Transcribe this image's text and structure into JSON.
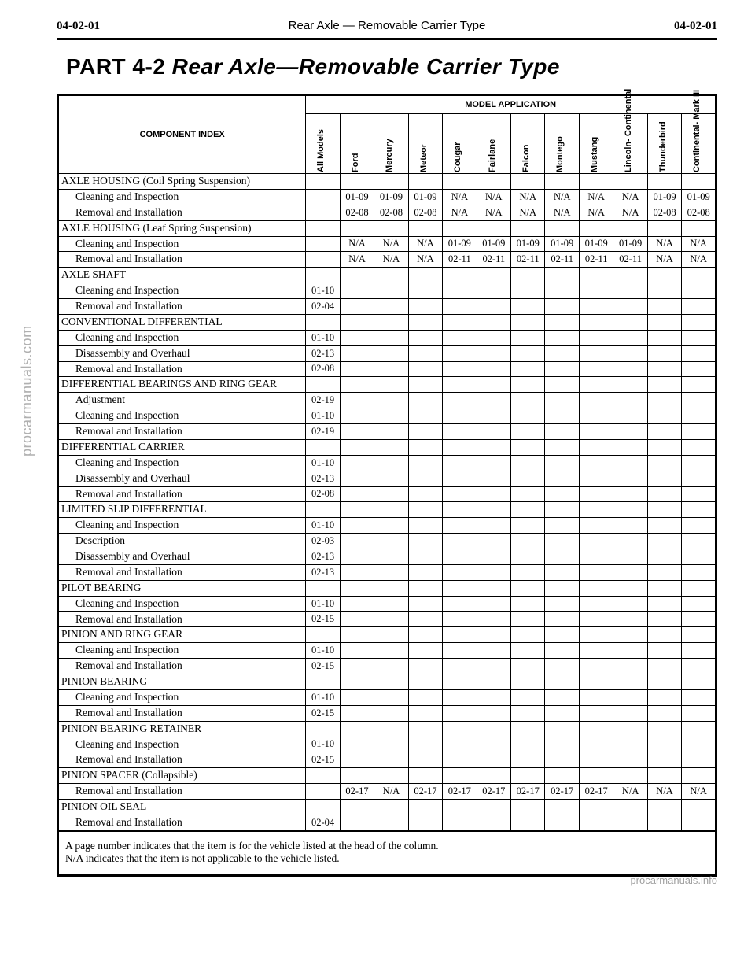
{
  "header": {
    "left": "04-02-01",
    "center": "Rear Axle — Removable Carrier Type",
    "right": "04-02-01"
  },
  "title": {
    "part": "PART 4-2",
    "rest": "Rear Axle—Removable Carrier Type"
  },
  "table": {
    "component_header": "COMPONENT INDEX",
    "model_app_header": "MODEL APPLICATION",
    "columns": [
      "All Models",
      "Ford",
      "Mercury",
      "Meteor",
      "Cougar",
      "Fairlane",
      "Falcon",
      "Montego",
      "Mustang",
      "Lincoln-\nContinental",
      "Thunderbird",
      "Continental-\nMark III"
    ],
    "rows": [
      {
        "label": "AXLE HOUSING (Coil Spring Suspension)",
        "section": true,
        "vals": [
          "",
          "",
          "",
          "",
          "",
          "",
          "",
          "",
          "",
          "",
          "",
          ""
        ]
      },
      {
        "label": "Cleaning and Inspection",
        "indent": true,
        "vals": [
          "",
          "01-09",
          "01-09",
          "01-09",
          "N/A",
          "N/A",
          "N/A",
          "N/A",
          "N/A",
          "N/A",
          "01-09",
          "01-09"
        ]
      },
      {
        "label": "Removal and Installation",
        "indent": true,
        "vals": [
          "",
          "02-08",
          "02-08",
          "02-08",
          "N/A",
          "N/A",
          "N/A",
          "N/A",
          "N/A",
          "N/A",
          "02-08",
          "02-08"
        ]
      },
      {
        "label": "AXLE HOUSING (Leaf Spring Suspension)",
        "section": true,
        "vals": [
          "",
          "",
          "",
          "",
          "",
          "",
          "",
          "",
          "",
          "",
          "",
          ""
        ]
      },
      {
        "label": "Cleaning and Inspection",
        "indent": true,
        "vals": [
          "",
          "N/A",
          "N/A",
          "N/A",
          "01-09",
          "01-09",
          "01-09",
          "01-09",
          "01-09",
          "01-09",
          "N/A",
          "N/A"
        ]
      },
      {
        "label": "Removal and Installation",
        "indent": true,
        "vals": [
          "",
          "N/A",
          "N/A",
          "N/A",
          "02-11",
          "02-11",
          "02-11",
          "02-11",
          "02-11",
          "02-11",
          "N/A",
          "N/A"
        ]
      },
      {
        "label": "AXLE SHAFT",
        "section": true,
        "vals": [
          "",
          "",
          "",
          "",
          "",
          "",
          "",
          "",
          "",
          "",
          "",
          ""
        ]
      },
      {
        "label": "Cleaning and Inspection",
        "indent": true,
        "vals": [
          "01-10",
          "",
          "",
          "",
          "",
          "",
          "",
          "",
          "",
          "",
          "",
          ""
        ]
      },
      {
        "label": "Removal and Installation",
        "indent": true,
        "vals": [
          "02-04",
          "",
          "",
          "",
          "",
          "",
          "",
          "",
          "",
          "",
          "",
          ""
        ]
      },
      {
        "label": "CONVENTIONAL DIFFERENTIAL",
        "section": true,
        "vals": [
          "",
          "",
          "",
          "",
          "",
          "",
          "",
          "",
          "",
          "",
          "",
          ""
        ]
      },
      {
        "label": "Cleaning and Inspection",
        "indent": true,
        "vals": [
          "01-10",
          "",
          "",
          "",
          "",
          "",
          "",
          "",
          "",
          "",
          "",
          ""
        ]
      },
      {
        "label": "Disassembly and Overhaul",
        "indent": true,
        "vals": [
          "02-13",
          "",
          "",
          "",
          "",
          "",
          "",
          "",
          "",
          "",
          "",
          ""
        ]
      },
      {
        "label": "Removal and Installation",
        "indent": true,
        "vals": [
          "02-08",
          "",
          "",
          "",
          "",
          "",
          "",
          "",
          "",
          "",
          "",
          ""
        ]
      },
      {
        "label": "DIFFERENTIAL BEARINGS AND RING GEAR",
        "section": true,
        "vals": [
          "",
          "",
          "",
          "",
          "",
          "",
          "",
          "",
          "",
          "",
          "",
          ""
        ]
      },
      {
        "label": "Adjustment",
        "indent": true,
        "vals": [
          "02-19",
          "",
          "",
          "",
          "",
          "",
          "",
          "",
          "",
          "",
          "",
          ""
        ]
      },
      {
        "label": "Cleaning and Inspection",
        "indent": true,
        "vals": [
          "01-10",
          "",
          "",
          "",
          "",
          "",
          "",
          "",
          "",
          "",
          "",
          ""
        ]
      },
      {
        "label": "Removal and Installation",
        "indent": true,
        "vals": [
          "02-19",
          "",
          "",
          "",
          "",
          "",
          "",
          "",
          "",
          "",
          "",
          ""
        ]
      },
      {
        "label": "DIFFERENTIAL CARRIER",
        "section": true,
        "vals": [
          "",
          "",
          "",
          "",
          "",
          "",
          "",
          "",
          "",
          "",
          "",
          ""
        ]
      },
      {
        "label": "Cleaning and Inspection",
        "indent": true,
        "vals": [
          "01-10",
          "",
          "",
          "",
          "",
          "",
          "",
          "",
          "",
          "",
          "",
          ""
        ]
      },
      {
        "label": "Disassembly and Overhaul",
        "indent": true,
        "vals": [
          "02-13",
          "",
          "",
          "",
          "",
          "",
          "",
          "",
          "",
          "",
          "",
          ""
        ]
      },
      {
        "label": "Removal and Installation",
        "indent": true,
        "vals": [
          "02-08",
          "",
          "",
          "",
          "",
          "",
          "",
          "",
          "",
          "",
          "",
          ""
        ]
      },
      {
        "label": "LIMITED SLIP DIFFERENTIAL",
        "section": true,
        "vals": [
          "",
          "",
          "",
          "",
          "",
          "",
          "",
          "",
          "",
          "",
          "",
          ""
        ]
      },
      {
        "label": "Cleaning and Inspection",
        "indent": true,
        "vals": [
          "01-10",
          "",
          "",
          "",
          "",
          "",
          "",
          "",
          "",
          "",
          "",
          ""
        ]
      },
      {
        "label": "Description",
        "indent": true,
        "vals": [
          "02-03",
          "",
          "",
          "",
          "",
          "",
          "",
          "",
          "",
          "",
          "",
          ""
        ]
      },
      {
        "label": "Disassembly and Overhaul",
        "indent": true,
        "vals": [
          "02-13",
          "",
          "",
          "",
          "",
          "",
          "",
          "",
          "",
          "",
          "",
          ""
        ]
      },
      {
        "label": "Removal and Installation",
        "indent": true,
        "vals": [
          "02-13",
          "",
          "",
          "",
          "",
          "",
          "",
          "",
          "",
          "",
          "",
          ""
        ]
      },
      {
        "label": "PILOT BEARING",
        "section": true,
        "vals": [
          "",
          "",
          "",
          "",
          "",
          "",
          "",
          "",
          "",
          "",
          "",
          ""
        ]
      },
      {
        "label": "Cleaning and Inspection",
        "indent": true,
        "vals": [
          "01-10",
          "",
          "",
          "",
          "",
          "",
          "",
          "",
          "",
          "",
          "",
          ""
        ]
      },
      {
        "label": "Removal and Installation",
        "indent": true,
        "vals": [
          "02-15",
          "",
          "",
          "",
          "",
          "",
          "",
          "",
          "",
          "",
          "",
          ""
        ]
      },
      {
        "label": "PINION AND RING GEAR",
        "section": true,
        "vals": [
          "",
          "",
          "",
          "",
          "",
          "",
          "",
          "",
          "",
          "",
          "",
          ""
        ]
      },
      {
        "label": "Cleaning and Inspection",
        "indent": true,
        "vals": [
          "01-10",
          "",
          "",
          "",
          "",
          "",
          "",
          "",
          "",
          "",
          "",
          ""
        ]
      },
      {
        "label": "Removal and Installation",
        "indent": true,
        "vals": [
          "02-15",
          "",
          "",
          "",
          "",
          "",
          "",
          "",
          "",
          "",
          "",
          ""
        ]
      },
      {
        "label": "PINION BEARING",
        "section": true,
        "vals": [
          "",
          "",
          "",
          "",
          "",
          "",
          "",
          "",
          "",
          "",
          "",
          ""
        ]
      },
      {
        "label": "Cleaning and Inspection",
        "indent": true,
        "vals": [
          "01-10",
          "",
          "",
          "",
          "",
          "",
          "",
          "",
          "",
          "",
          "",
          ""
        ]
      },
      {
        "label": "Removal and Installation",
        "indent": true,
        "vals": [
          "02-15",
          "",
          "",
          "",
          "",
          "",
          "",
          "",
          "",
          "",
          "",
          ""
        ]
      },
      {
        "label": "PINION BEARING RETAINER",
        "section": true,
        "vals": [
          "",
          "",
          "",
          "",
          "",
          "",
          "",
          "",
          "",
          "",
          "",
          ""
        ]
      },
      {
        "label": "Cleaning and Inspection",
        "indent": true,
        "vals": [
          "01-10",
          "",
          "",
          "",
          "",
          "",
          "",
          "",
          "",
          "",
          "",
          ""
        ]
      },
      {
        "label": "Removal and Installation",
        "indent": true,
        "vals": [
          "02-15",
          "",
          "",
          "",
          "",
          "",
          "",
          "",
          "",
          "",
          "",
          ""
        ]
      },
      {
        "label": "PINION SPACER (Collapsible)",
        "section": true,
        "vals": [
          "",
          "",
          "",
          "",
          "",
          "",
          "",
          "",
          "",
          "",
          "",
          ""
        ]
      },
      {
        "label": "Removal and Installation",
        "indent": true,
        "vals": [
          "",
          "02-17",
          "N/A",
          "02-17",
          "02-17",
          "02-17",
          "02-17",
          "02-17",
          "02-17",
          "N/A",
          "N/A",
          "N/A"
        ]
      },
      {
        "label": "PINION OIL SEAL",
        "section": true,
        "vals": [
          "",
          "",
          "",
          "",
          "",
          "",
          "",
          "",
          "",
          "",
          "",
          ""
        ]
      },
      {
        "label": "Removal and Installation",
        "indent": true,
        "vals": [
          "02-04",
          "",
          "",
          "",
          "",
          "",
          "",
          "",
          "",
          "",
          "",
          ""
        ]
      }
    ],
    "footer1": "A page number indicates that the item is for the vehicle listed at the head of the column.",
    "footer2": "N/A indicates that the item is not applicable to the vehicle listed."
  },
  "watermarks": {
    "left": "procarmanuals.com",
    "bottom": "procarmanuals.info"
  }
}
